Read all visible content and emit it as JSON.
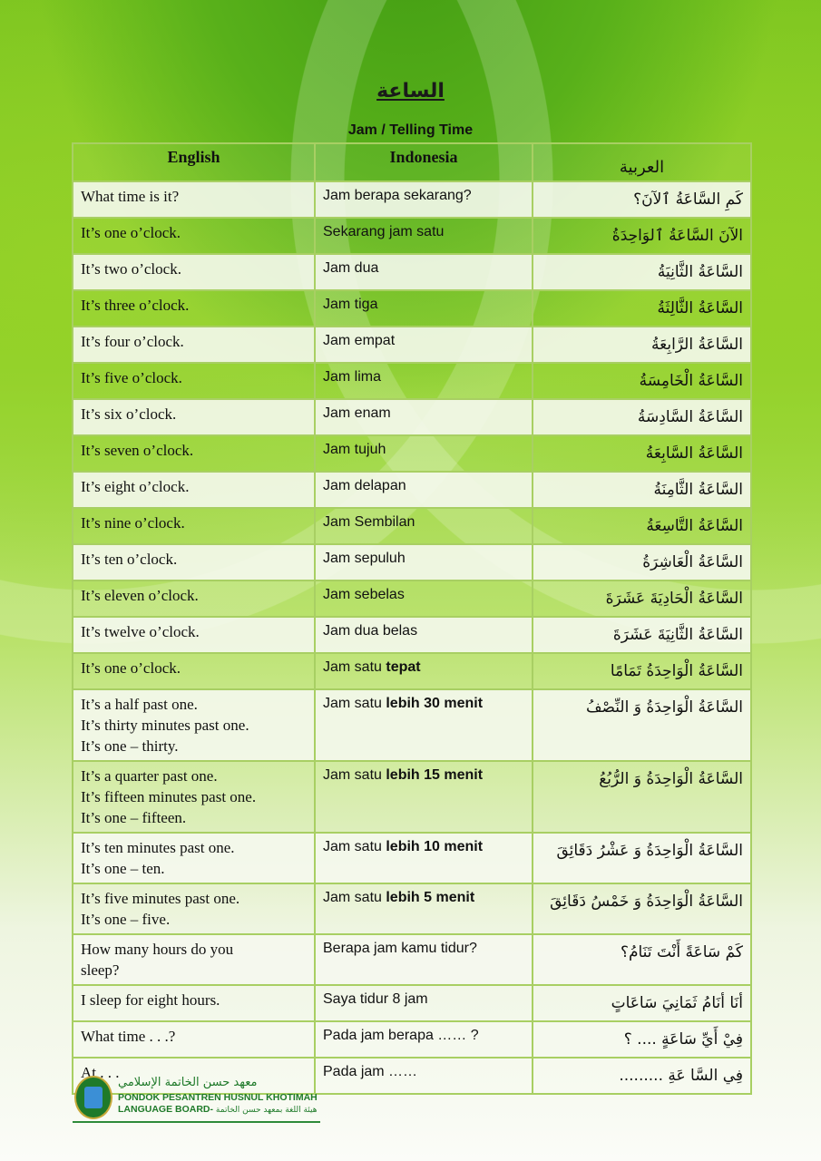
{
  "title": "الساعة",
  "subtitle": "Jam / Telling Time",
  "headers": {
    "english": "English",
    "indonesia": "Indonesia",
    "arabic": "العربية"
  },
  "rows": [
    {
      "en": [
        "What time is it?"
      ],
      "id": "Jam berapa sekarang?",
      "id_bold": "",
      "ar": "كَمِ السَّاعَةُ ٱلآنَ؟"
    },
    {
      "en": [
        "It’s one o’clock."
      ],
      "id": "Sekarang jam satu",
      "id_bold": "",
      "ar": "الآنَ السَّاعَةُ ٱلوَاحِدَةُ"
    },
    {
      "en": [
        "It’s two o’clock."
      ],
      "id": "Jam dua",
      "id_bold": "",
      "ar": "السَّاعَةُ  الثَّانِيَةُ"
    },
    {
      "en": [
        "It’s three o’clock."
      ],
      "id": "Jam tiga",
      "id_bold": "",
      "ar": "السَّاعَةُ الثَّالِثَةُ"
    },
    {
      "en": [
        "It’s four o’clock."
      ],
      "id": "Jam empat",
      "id_bold": "",
      "ar": "السَّاعَةُ الرَّابِعَةُ"
    },
    {
      "en": [
        "It’s five o’clock."
      ],
      "id": "Jam lima",
      "id_bold": "",
      "ar": "السَّاعَةُ الْخَامِسَةُ"
    },
    {
      "en": [
        "It’s six o’clock."
      ],
      "id": "Jam enam",
      "id_bold": "",
      "ar": "السَّاعَةُ السَّادِسَةُ"
    },
    {
      "en": [
        "It’s seven o’clock."
      ],
      "id": "Jam tujuh",
      "id_bold": "",
      "ar": "السَّاعَةُ السَّابِعَةُ"
    },
    {
      "en": [
        "It’s eight o’clock."
      ],
      "id": "Jam delapan",
      "id_bold": "",
      "ar": "السَّاعَةُ الثَّامِنَةُ"
    },
    {
      "en": [
        "It’s nine o’clock."
      ],
      "id": "Jam Sembilan",
      "id_bold": "",
      "ar": "السَّاعَةُ التَّاسِعَةُ"
    },
    {
      "en": [
        "It’s ten o’clock."
      ],
      "id": "Jam sepuluh",
      "id_bold": "",
      "ar": "السَّاعَةُ الْعَاشِرَةُ"
    },
    {
      "en": [
        "It’s eleven o’clock."
      ],
      "id": "Jam sebelas",
      "id_bold": "",
      "ar": "السَّاعَةُ الْحَادِيَةَ عَشَرَةَ"
    },
    {
      "en": [
        "It’s twelve o’clock."
      ],
      "id": "Jam dua belas",
      "id_bold": "",
      "ar": "السَّاعَةُ الثَّانِيَةَ عَشَرَةَ"
    },
    {
      "en": [
        "It’s one o’clock."
      ],
      "id": "Jam satu ",
      "id_bold": "tepat",
      "ar": "السَّاعَةُ الْوَاحِدَةُ تَمَامًا"
    },
    {
      "en": [
        "It’s a half past one.",
        "It’s thirty minutes past one.",
        "It’s one – thirty."
      ],
      "id": "Jam satu ",
      "id_bold": "lebih 30 menit",
      "ar": "السَّاعَةُ الْوَاحِدَةُ وَ النِّصْفُ"
    },
    {
      "en": [
        "It’s a quarter past one.",
        "It’s fifteen minutes past one.",
        "It’s one – fifteen."
      ],
      "id": "Jam satu ",
      "id_bold": "lebih 15 menit",
      "ar": "السَّاعَةُ الْوَاحِدَةُ وَ الرُّبُعُ"
    },
    {
      "en": [
        "It’s ten minutes past one.",
        "It’s one – ten."
      ],
      "id": "Jam satu ",
      "id_bold": "lebih 10 menit",
      "ar": "السَّاعَةُ الْوَاحِدَةُ وَ عَشْرُ دَقَائِقَ"
    },
    {
      "en": [
        "It’s five minutes past one.",
        "It’s one – five."
      ],
      "id": "Jam satu ",
      "id_bold": "lebih 5 menit",
      "ar": "السَّاعَةُ الْوَاحِدَةُ وَ خَمْسُ دَقَائِقَ"
    },
    {
      "en": [
        "How many hours do you",
        "sleep?"
      ],
      "id": "Berapa jam kamu tidur?",
      "id_bold": "",
      "ar": "كَمْ سَاعَةً أَنْتَ تَنَامُ؟"
    },
    {
      "en": [
        "I sleep for eight hours."
      ],
      "id": "Saya tidur 8 jam",
      "id_bold": "",
      "ar": "أنَا أنَامُ ثَمَانِيَ سَاعَاتٍ"
    },
    {
      "en": [
        "What time . . .?"
      ],
      "id": "Pada jam berapa …… ?",
      "id_bold": "",
      "ar": "فِيْ أَيِّ سَاعَةٍ .... ؟"
    },
    {
      "en": [
        "At . . ."
      ],
      "id": "Pada jam ……",
      "id_bold": "",
      "ar": "فِي السَّا عَةِ ........."
    }
  ],
  "row_heights_note_free": true,
  "footer": {
    "arabic_name": "معهد حسن الخاتمة الإسلامي",
    "name": "PONDOK PESANTREN HUSNUL KHOTIMAH",
    "board": "LANGUAGE BOARD-",
    "board_arabic": "هيئة اللغة بمعهد حسن الخاتمة"
  },
  "colors": {
    "border": "#a8cf63",
    "brand_green": "#1f7a2a"
  }
}
